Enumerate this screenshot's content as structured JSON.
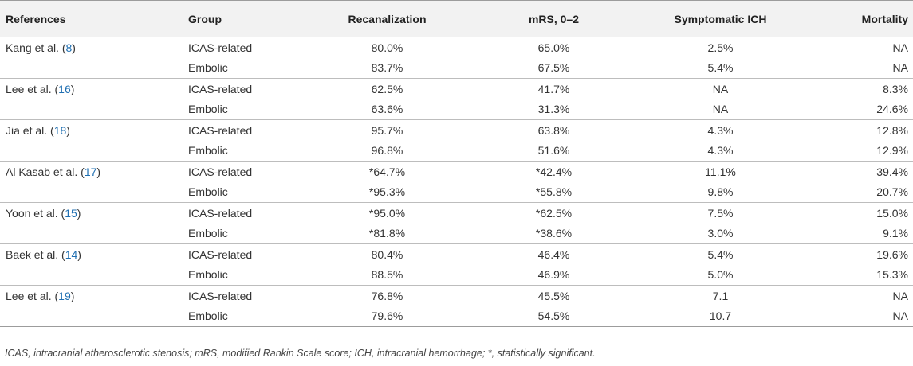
{
  "table": {
    "headers": {
      "references": "References",
      "group": "Group",
      "recanalization": "Recanalization",
      "mrs": "mRS, 0–2",
      "sich": "Symptomatic ICH",
      "mortality": "Mortality"
    },
    "studies": [
      {
        "ref_name": "Kang et al. (",
        "ref_num": "8",
        "ref_close": ")",
        "rows": [
          {
            "group": "ICAS-related",
            "recanalization": "80.0%",
            "mrs": "65.0%",
            "sich": "2.5%",
            "mortality": "NA"
          },
          {
            "group": "Embolic",
            "recanalization": "83.7%",
            "mrs": "67.5%",
            "sich": "5.4%",
            "mortality": "NA"
          }
        ]
      },
      {
        "ref_name": "Lee et al. (",
        "ref_num": "16",
        "ref_close": ")",
        "rows": [
          {
            "group": "ICAS-related",
            "recanalization": "62.5%",
            "mrs": "41.7%",
            "sich": "NA",
            "mortality": "8.3%"
          },
          {
            "group": "Embolic",
            "recanalization": "63.6%",
            "mrs": "31.3%",
            "sich": "NA",
            "mortality": "24.6%"
          }
        ]
      },
      {
        "ref_name": "Jia et al. (",
        "ref_num": "18",
        "ref_close": ")",
        "rows": [
          {
            "group": "ICAS-related",
            "recanalization": "95.7%",
            "mrs": "63.8%",
            "sich": "4.3%",
            "mortality": "12.8%"
          },
          {
            "group": "Embolic",
            "recanalization": "96.8%",
            "mrs": "51.6%",
            "sich": "4.3%",
            "mortality": "12.9%"
          }
        ]
      },
      {
        "ref_name": "Al Kasab et al. (",
        "ref_num": "17",
        "ref_close": ")",
        "rows": [
          {
            "group": "ICAS-related",
            "recanalization": "*64.7%",
            "mrs": "*42.4%",
            "sich": "11.1%",
            "mortality": "39.4%"
          },
          {
            "group": "Embolic",
            "recanalization": "*95.3%",
            "mrs": "*55.8%",
            "sich": "9.8%",
            "mortality": "20.7%"
          }
        ]
      },
      {
        "ref_name": "Yoon et al. (",
        "ref_num": "15",
        "ref_close": ")",
        "rows": [
          {
            "group": "ICAS-related",
            "recanalization": "*95.0%",
            "mrs": "*62.5%",
            "sich": "7.5%",
            "mortality": "15.0%"
          },
          {
            "group": "Embolic",
            "recanalization": "*81.8%",
            "mrs": "*38.6%",
            "sich": "3.0%",
            "mortality": "9.1%"
          }
        ]
      },
      {
        "ref_name": "Baek et al. (",
        "ref_num": "14",
        "ref_close": ")",
        "rows": [
          {
            "group": "ICAS-related",
            "recanalization": "80.4%",
            "mrs": "46.4%",
            "sich": "5.4%",
            "mortality": "19.6%"
          },
          {
            "group": "Embolic",
            "recanalization": "88.5%",
            "mrs": "46.9%",
            "sich": "5.0%",
            "mortality": "15.3%"
          }
        ]
      },
      {
        "ref_name": "Lee et al. (",
        "ref_num": "19",
        "ref_close": ")",
        "rows": [
          {
            "group": "ICAS-related",
            "recanalization": "76.8%",
            "mrs": "45.5%",
            "sich": "7.1",
            "mortality": "NA"
          },
          {
            "group": "Embolic",
            "recanalization": "79.6%",
            "mrs": "54.5%",
            "sich": "10.7",
            "mortality": "NA"
          }
        ]
      }
    ],
    "footnote": "ICAS, intracranial atherosclerotic stenosis; mRS, modified Rankin Scale score; ICH, intracranial hemorrhage; *, statistically significant."
  }
}
